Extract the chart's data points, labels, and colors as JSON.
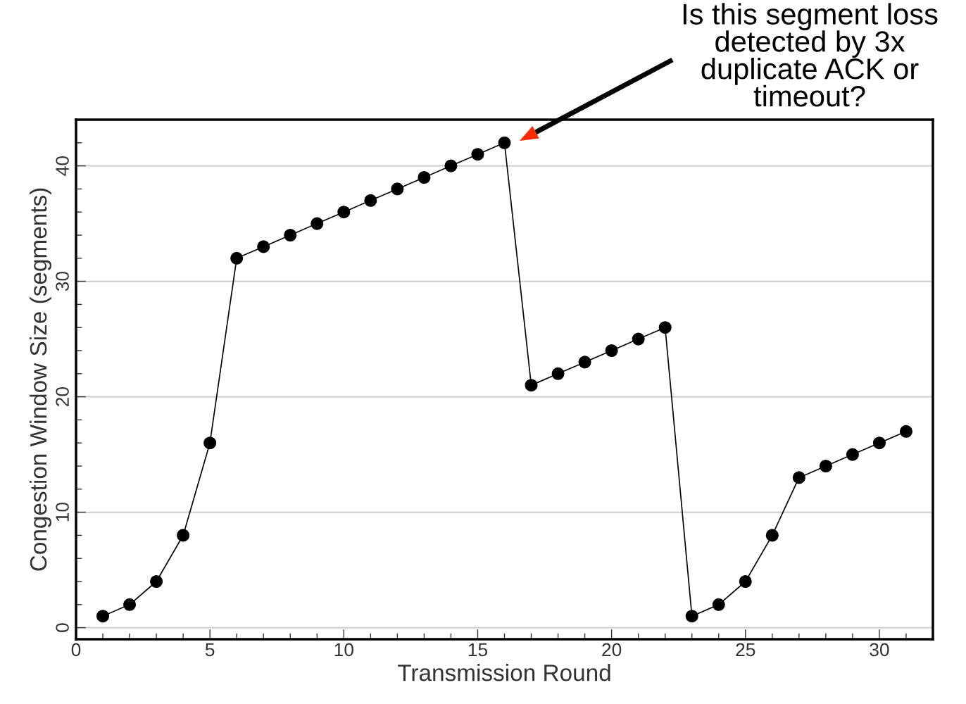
{
  "chart_data": {
    "type": "line",
    "xlabel": "Transmission Round",
    "ylabel": "Congestion Window Size (segments)",
    "x": [
      1,
      2,
      3,
      4,
      5,
      6,
      7,
      8,
      9,
      10,
      11,
      12,
      13,
      14,
      15,
      16,
      17,
      18,
      19,
      20,
      21,
      22,
      23,
      24,
      25,
      26,
      27,
      28,
      29,
      30,
      31
    ],
    "series": [
      {
        "color": "#000000",
        "values": [
          1,
          2,
          4,
          8,
          16,
          32,
          33,
          34,
          35,
          36,
          37,
          38,
          39,
          40,
          41,
          42,
          21,
          22,
          23,
          24,
          25,
          26,
          1,
          2,
          4,
          8,
          13,
          14,
          15,
          16,
          17
        ]
      }
    ],
    "marker": "circle",
    "line_style": "solid",
    "grid": "y",
    "xlim": [
      0,
      32
    ],
    "ylim": [
      -1,
      44
    ],
    "xticks": [
      0,
      {
        "value": 1,
        "label": null
      },
      {
        "value": 2,
        "label": null
      },
      {
        "value": 3,
        "label": null
      },
      {
        "value": 4,
        "label": null
      },
      5,
      {
        "value": 6,
        "label": null
      },
      {
        "value": 7,
        "label": null
      },
      {
        "value": 8,
        "label": null
      },
      {
        "value": 9,
        "label": null
      },
      10,
      {
        "value": 11,
        "label": null
      },
      {
        "value": 12,
        "label": null
      },
      {
        "value": 13,
        "label": null
      },
      {
        "value": 14,
        "label": null
      },
      15,
      {
        "value": 16,
        "label": null
      },
      {
        "value": 17,
        "label": null
      },
      {
        "value": 18,
        "label": null
      },
      {
        "value": 19,
        "label": null
      },
      20,
      {
        "value": 21,
        "label": null
      },
      {
        "value": 22,
        "label": null
      },
      {
        "value": 23,
        "label": null
      },
      {
        "value": 24,
        "label": null
      },
      25,
      {
        "value": 26,
        "label": null
      },
      {
        "value": 27,
        "label": null
      },
      {
        "value": 28,
        "label": null
      },
      {
        "value": 29,
        "label": null
      },
      30,
      {
        "value": 31,
        "label": null
      }
    ],
    "yticks": [
      0,
      {
        "value": 2,
        "label": null
      },
      {
        "value": 4,
        "label": null
      },
      {
        "value": 6,
        "label": null
      },
      {
        "value": 8,
        "label": null
      },
      10,
      {
        "value": 12,
        "label": null
      },
      {
        "value": 14,
        "label": null
      },
      {
        "value": 16,
        "label": null
      },
      {
        "value": 18,
        "label": null
      },
      20,
      {
        "value": 22,
        "label": null
      },
      {
        "value": 24,
        "label": null
      },
      {
        "value": 26,
        "label": null
      },
      {
        "value": 28,
        "label": null
      },
      30,
      {
        "value": 32,
        "label": null
      },
      {
        "value": 34,
        "label": null
      },
      {
        "value": 36,
        "label": null
      },
      {
        "value": 38,
        "label": null
      },
      40,
      {
        "value": 42,
        "label": null
      }
    ],
    "annotations": [
      "Is this segment loss\ndetected by 3x\nduplicate ACK or\ntimeout?"
    ]
  }
}
